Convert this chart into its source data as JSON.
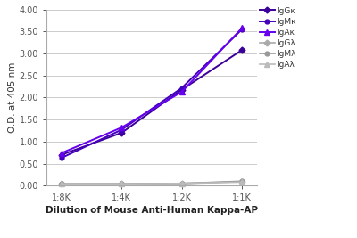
{
  "x_labels": [
    "1:8K",
    "1:4K",
    "1:2K",
    "1:1K"
  ],
  "x_values": [
    0,
    1,
    2,
    3
  ],
  "series": [
    {
      "label": "IgGκ",
      "color": "#3B0099",
      "values": [
        0.7,
        1.2,
        2.18,
        3.08
      ],
      "marker": "D",
      "markersize": 3.5,
      "linewidth": 1.4,
      "linestyle": "-"
    },
    {
      "label": "IgMκ",
      "color": "#4400BB",
      "values": [
        0.63,
        1.27,
        2.22,
        3.55
      ],
      "marker": "o",
      "markersize": 3.5,
      "linewidth": 1.4,
      "linestyle": "-"
    },
    {
      "label": "IgAκ",
      "color": "#6600EE",
      "values": [
        0.74,
        1.32,
        2.13,
        3.58
      ],
      "marker": "^",
      "markersize": 4,
      "linewidth": 1.4,
      "linestyle": "-"
    },
    {
      "label": "IgGλ",
      "color": "#AAAAAA",
      "values": [
        0.04,
        0.04,
        0.05,
        0.09
      ],
      "marker": "D",
      "markersize": 3.5,
      "linewidth": 1.2,
      "linestyle": "-"
    },
    {
      "label": "IgMλ",
      "color": "#999999",
      "values": [
        0.04,
        0.04,
        0.05,
        0.1
      ],
      "marker": "o",
      "markersize": 3.5,
      "linewidth": 1.2,
      "linestyle": "-"
    },
    {
      "label": "IgAλ",
      "color": "#BBBBBB",
      "values": [
        0.04,
        0.04,
        0.05,
        0.08
      ],
      "marker": "^",
      "markersize": 4,
      "linewidth": 1.2,
      "linestyle": "-"
    }
  ],
  "ylabel": "O.D. at 405 nm",
  "xlabel": "Dilution of Mouse Anti-Human Kappa-AP",
  "ylim": [
    0.0,
    4.0
  ],
  "yticks": [
    0.0,
    0.5,
    1.0,
    1.5,
    2.0,
    2.5,
    3.0,
    3.5,
    4.0
  ],
  "ytick_labels": [
    "0.00",
    "0.50",
    "1.00",
    "1.50",
    "2.00",
    "2.50",
    "3.00",
    "3.50",
    "4.00"
  ],
  "background_color": "#FFFFFF",
  "grid_color": "#CCCCCC",
  "legend_fontsize": 6.5,
  "axis_label_fontsize": 7.5,
  "tick_fontsize": 7
}
